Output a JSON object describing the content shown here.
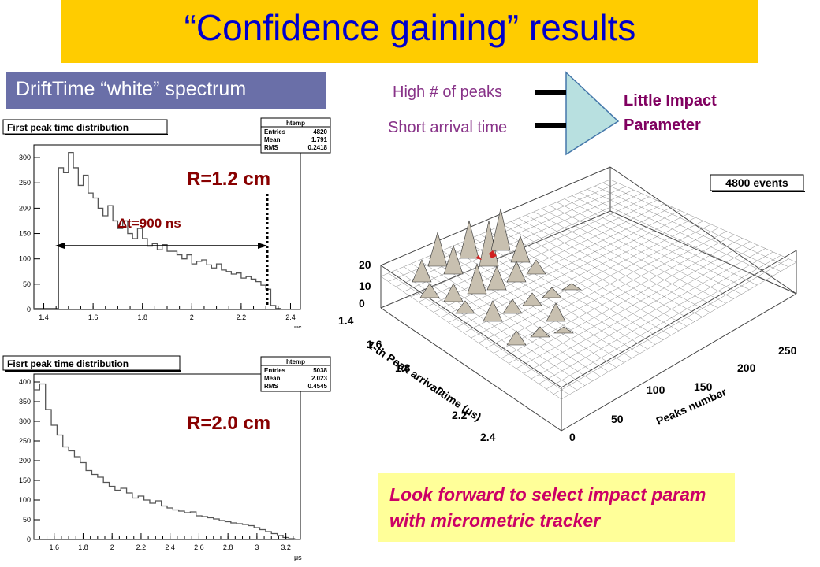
{
  "title": "“Confidence gaining” results",
  "subtitle": "DriftTime “white” spectrum",
  "diagram": {
    "input1": "High # of peaks",
    "input2": "Short arrival time",
    "output_line1": "Little Impact",
    "output_line2": "Parameter"
  },
  "annotations": {
    "r1": "R=1.2 cm",
    "r2": "R=2.0 cm",
    "dt": "Δt=900 ns"
  },
  "bottom_note": {
    "line1": "Look forward to select impact param",
    "line2": "with micrometric tracker"
  },
  "colors": {
    "title_bg": "#ffcc00",
    "title_text": "#0000cc",
    "subtitle_bg": "#6a6fa8",
    "funnel_fill": "#b8e0e0",
    "note_bg": "#ffff99",
    "note_text": "#cc0066",
    "r_label": "#880000"
  },
  "chart_data": [
    {
      "type": "bar",
      "title": "First peak time distribution",
      "stats": {
        "name": "htemp",
        "rows": [
          [
            "Entries",
            "4820"
          ],
          [
            "Mean",
            "1.791"
          ],
          [
            "RMS",
            "0.2418"
          ]
        ]
      },
      "xunit": "μs",
      "xlim": [
        1.36,
        2.44
      ],
      "ylim": [
        0,
        325
      ],
      "xticks": [
        "1.4",
        "1.6",
        "1.8",
        "2",
        "2.2",
        "2.4"
      ],
      "yticks": [
        "0",
        "50",
        "100",
        "150",
        "200",
        "250",
        "300"
      ],
      "bin_width": 0.02,
      "x_start": 1.36,
      "values": [
        2,
        2,
        2,
        2,
        2,
        280,
        270,
        310,
        280,
        245,
        265,
        230,
        220,
        200,
        185,
        205,
        175,
        160,
        175,
        150,
        140,
        160,
        140,
        125,
        130,
        118,
        128,
        115,
        115,
        108,
        100,
        108,
        90,
        95,
        98,
        88,
        82,
        90,
        78,
        75,
        70,
        72,
        62,
        65,
        60,
        55,
        48,
        40,
        8,
        2,
        0,
        0,
        0,
        0
      ]
    },
    {
      "type": "bar",
      "title": "Fisrt peak time distribution",
      "stats": {
        "name": "htemp",
        "rows": [
          [
            "Entries",
            "5038"
          ],
          [
            "Mean",
            "2.023"
          ],
          [
            "RMS",
            "0.4545"
          ]
        ]
      },
      "xunit": "μs",
      "xlim": [
        1.46,
        3.3
      ],
      "ylim": [
        0,
        420
      ],
      "xticks": [
        "1.6",
        "1.8",
        "2",
        "2.2",
        "2.4",
        "2.6",
        "2.8",
        "3",
        "3.2"
      ],
      "yticks": [
        "0",
        "50",
        "100",
        "150",
        "200",
        "250",
        "300",
        "350",
        "400"
      ],
      "bin_width": 0.04,
      "x_start": 1.46,
      "values": [
        380,
        395,
        330,
        290,
        265,
        235,
        225,
        210,
        195,
        175,
        165,
        158,
        145,
        135,
        125,
        130,
        118,
        105,
        110,
        100,
        92,
        98,
        85,
        80,
        75,
        72,
        68,
        70,
        60,
        58,
        55,
        52,
        48,
        45,
        42,
        40,
        38,
        35,
        30,
        25,
        20,
        15,
        10,
        5,
        2,
        0
      ]
    },
    {
      "type": "heatmap",
      "legend": "4800 events",
      "xlabel": "1-th Peak arrival time (μs)",
      "ylabel": "Peaks number",
      "xticks": [
        "1.4",
        "1.6",
        "1.8",
        "2",
        "2.2",
        "2.4"
      ],
      "yticks": [
        "0",
        "50",
        "100",
        "150",
        "200",
        "250"
      ],
      "zticks": [
        "0",
        "10",
        "20"
      ]
    }
  ]
}
